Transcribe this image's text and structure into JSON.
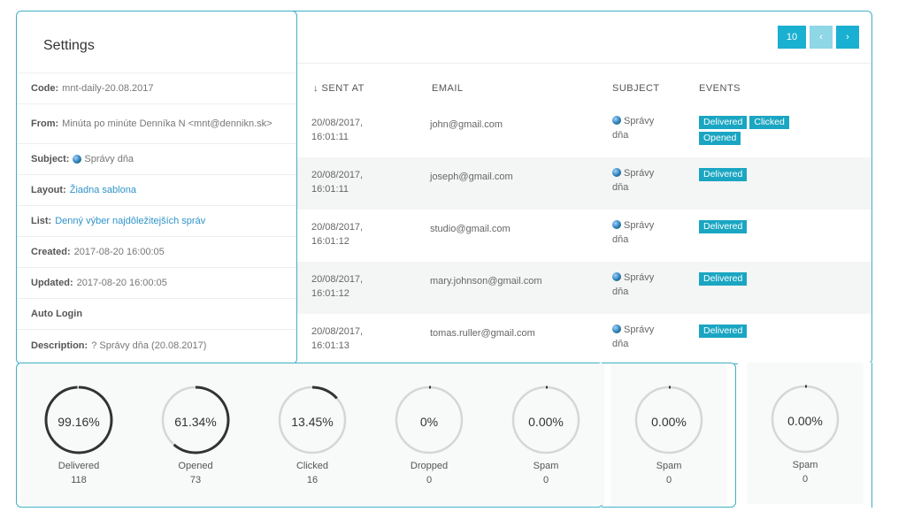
{
  "settings": {
    "title": "Settings",
    "code_label": "Code:",
    "code_value": "mnt-daily-20.08.2017",
    "from_label": "From:",
    "from_value": "Minúta po minúte Denníka N <mnt@dennikn.sk>",
    "subject_label": "Subject:",
    "subject_value": "Správy dňa",
    "layout_label": "Layout:",
    "layout_value": "Žiadna sablona",
    "list_label": "List:",
    "list_value": "Denný výber najdôležitejších správ",
    "created_label": "Created:",
    "created_value": "2017-08-20 16:00:05",
    "updated_label": "Updated:",
    "updated_value": "2017-08-20 16:00:05",
    "autologin_label": "Auto Login",
    "description_label": "Description:",
    "description_value": "? Správy dňa (20.08.2017)"
  },
  "pager": {
    "size": "10",
    "prev": "‹",
    "next": "›"
  },
  "table": {
    "headers": {
      "sent_at": "↓  SENT AT",
      "email": "EMAIL",
      "subject": "SUBJECT",
      "events": "EVENTS"
    },
    "rows": [
      {
        "sent_date": "20/08/2017,",
        "sent_time": "16:01:11",
        "email": "john@gmail.com",
        "subject_a": "Správy",
        "subject_b": "dňa",
        "events": [
          "Delivered",
          "Clicked",
          "Opened"
        ]
      },
      {
        "sent_date": "20/08/2017,",
        "sent_time": "16:01:11",
        "email": "joseph@gmail.com",
        "subject_a": "Správy",
        "subject_b": "dňa",
        "events": [
          "Delivered"
        ]
      },
      {
        "sent_date": "20/08/2017,",
        "sent_time": "16:01:12",
        "email": "studio@gmail.com",
        "subject_a": "Správy",
        "subject_b": "dňa",
        "events": [
          "Delivered"
        ]
      },
      {
        "sent_date": "20/08/2017,",
        "sent_time": "16:01:12",
        "email": "mary.johnson@gmail.com",
        "subject_a": "Správy",
        "subject_b": "dňa",
        "events": [
          "Delivered"
        ]
      },
      {
        "sent_date": "20/08/2017,",
        "sent_time": "16:01:13",
        "email": "tomas.ruller@gmail.com",
        "subject_a": "Správy",
        "subject_b": "dňa",
        "events": [
          "Delivered"
        ]
      }
    ]
  },
  "stats": [
    {
      "pct": "99.16%",
      "fraction": 0.9916,
      "label": "Delivered",
      "count": "118"
    },
    {
      "pct": "61.34%",
      "fraction": 0.6134,
      "label": "Opened",
      "count": "73"
    },
    {
      "pct": "13.45%",
      "fraction": 0.1345,
      "label": "Clicked",
      "count": "16"
    },
    {
      "pct": "0%",
      "fraction": 0,
      "label": "Dropped",
      "count": "0"
    },
    {
      "pct": "0.00%",
      "fraction": 0,
      "label": "Spam",
      "count": "0"
    },
    {
      "pct": "0.00%",
      "fraction": 0,
      "label": "Spam",
      "count": "0"
    },
    {
      "pct": "0.00%",
      "fraction": 0,
      "label": "Spam",
      "count": "0"
    }
  ],
  "colors": {
    "accent": "#1ab0d1",
    "border": "#3fb0c6",
    "ring_track": "#d6d6d6",
    "ring_fill": "#333333"
  }
}
